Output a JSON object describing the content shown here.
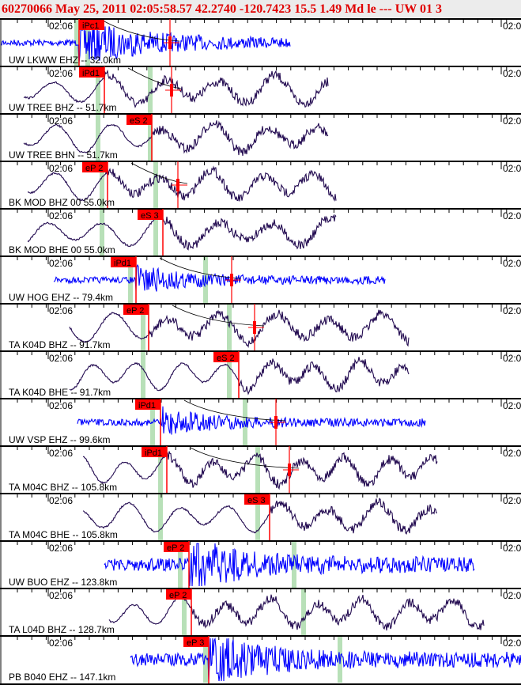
{
  "header": {
    "title": "60270066 May 25, 2011 02:05:58.57    42.2740 -120.7423 15.5 1.49 Md le --- UW 01   3"
  },
  "colors": {
    "short_period": "#0000ff",
    "broadband": "#220a50",
    "pick": "#ff0000",
    "phase_marker": "#b8e0b8",
    "header_text": "#e00000"
  },
  "chart_data": {
    "type": "line",
    "title": "60270066 May 25, 2011 02:05:58.57    42.2740 -120.7423 15.5 1.49 Md le --- UW 01   3",
    "time_tick_label": "02:06",
    "right_tick_label": "02:0",
    "traces": [
      {
        "label": "UW LKWW EHZ -- 32.0km",
        "pick": "iPc1",
        "kind": "short_period"
      },
      {
        "label": "UW TREE BHZ -- 51.7km",
        "pick": "iPd1",
        "kind": "broadband"
      },
      {
        "label": "UW TREE BHN -- 51.7km",
        "pick": "eS 2",
        "kind": "broadband"
      },
      {
        "label": "BK MOD BHZ 00 55.0km",
        "pick": "eP 2",
        "kind": "broadband"
      },
      {
        "label": "BK MOD BHE 00 55.0km",
        "pick": "eS 3",
        "kind": "broadband"
      },
      {
        "label": "UW HOG EHZ -- 79.4km",
        "pick": "iPd1",
        "kind": "short_period"
      },
      {
        "label": "TA K04D BHZ -- 91.7km",
        "pick": "eP 2",
        "kind": "broadband"
      },
      {
        "label": "TA K04D BHE -- 91.7km",
        "pick": "eS 2",
        "kind": "broadband"
      },
      {
        "label": "UW VSP EHZ -- 99.6km",
        "pick": "iPd1",
        "kind": "short_period"
      },
      {
        "label": "TA M04C BHZ -- 105.8km",
        "pick": "iPd1",
        "kind": "broadband"
      },
      {
        "label": "TA M04C BHE -- 105.8km",
        "pick": "eS 3",
        "kind": "broadband"
      },
      {
        "label": "UW BUO EHZ -- 123.8km",
        "pick": "eP 2",
        "kind": "short_period"
      },
      {
        "label": "TA L04D BHZ -- 128.7km",
        "pick": "eP 2",
        "kind": "broadband"
      },
      {
        "label": "PB B040 EHZ -- 147.1km",
        "pick": "eP 3",
        "kind": "short_period"
      }
    ]
  }
}
